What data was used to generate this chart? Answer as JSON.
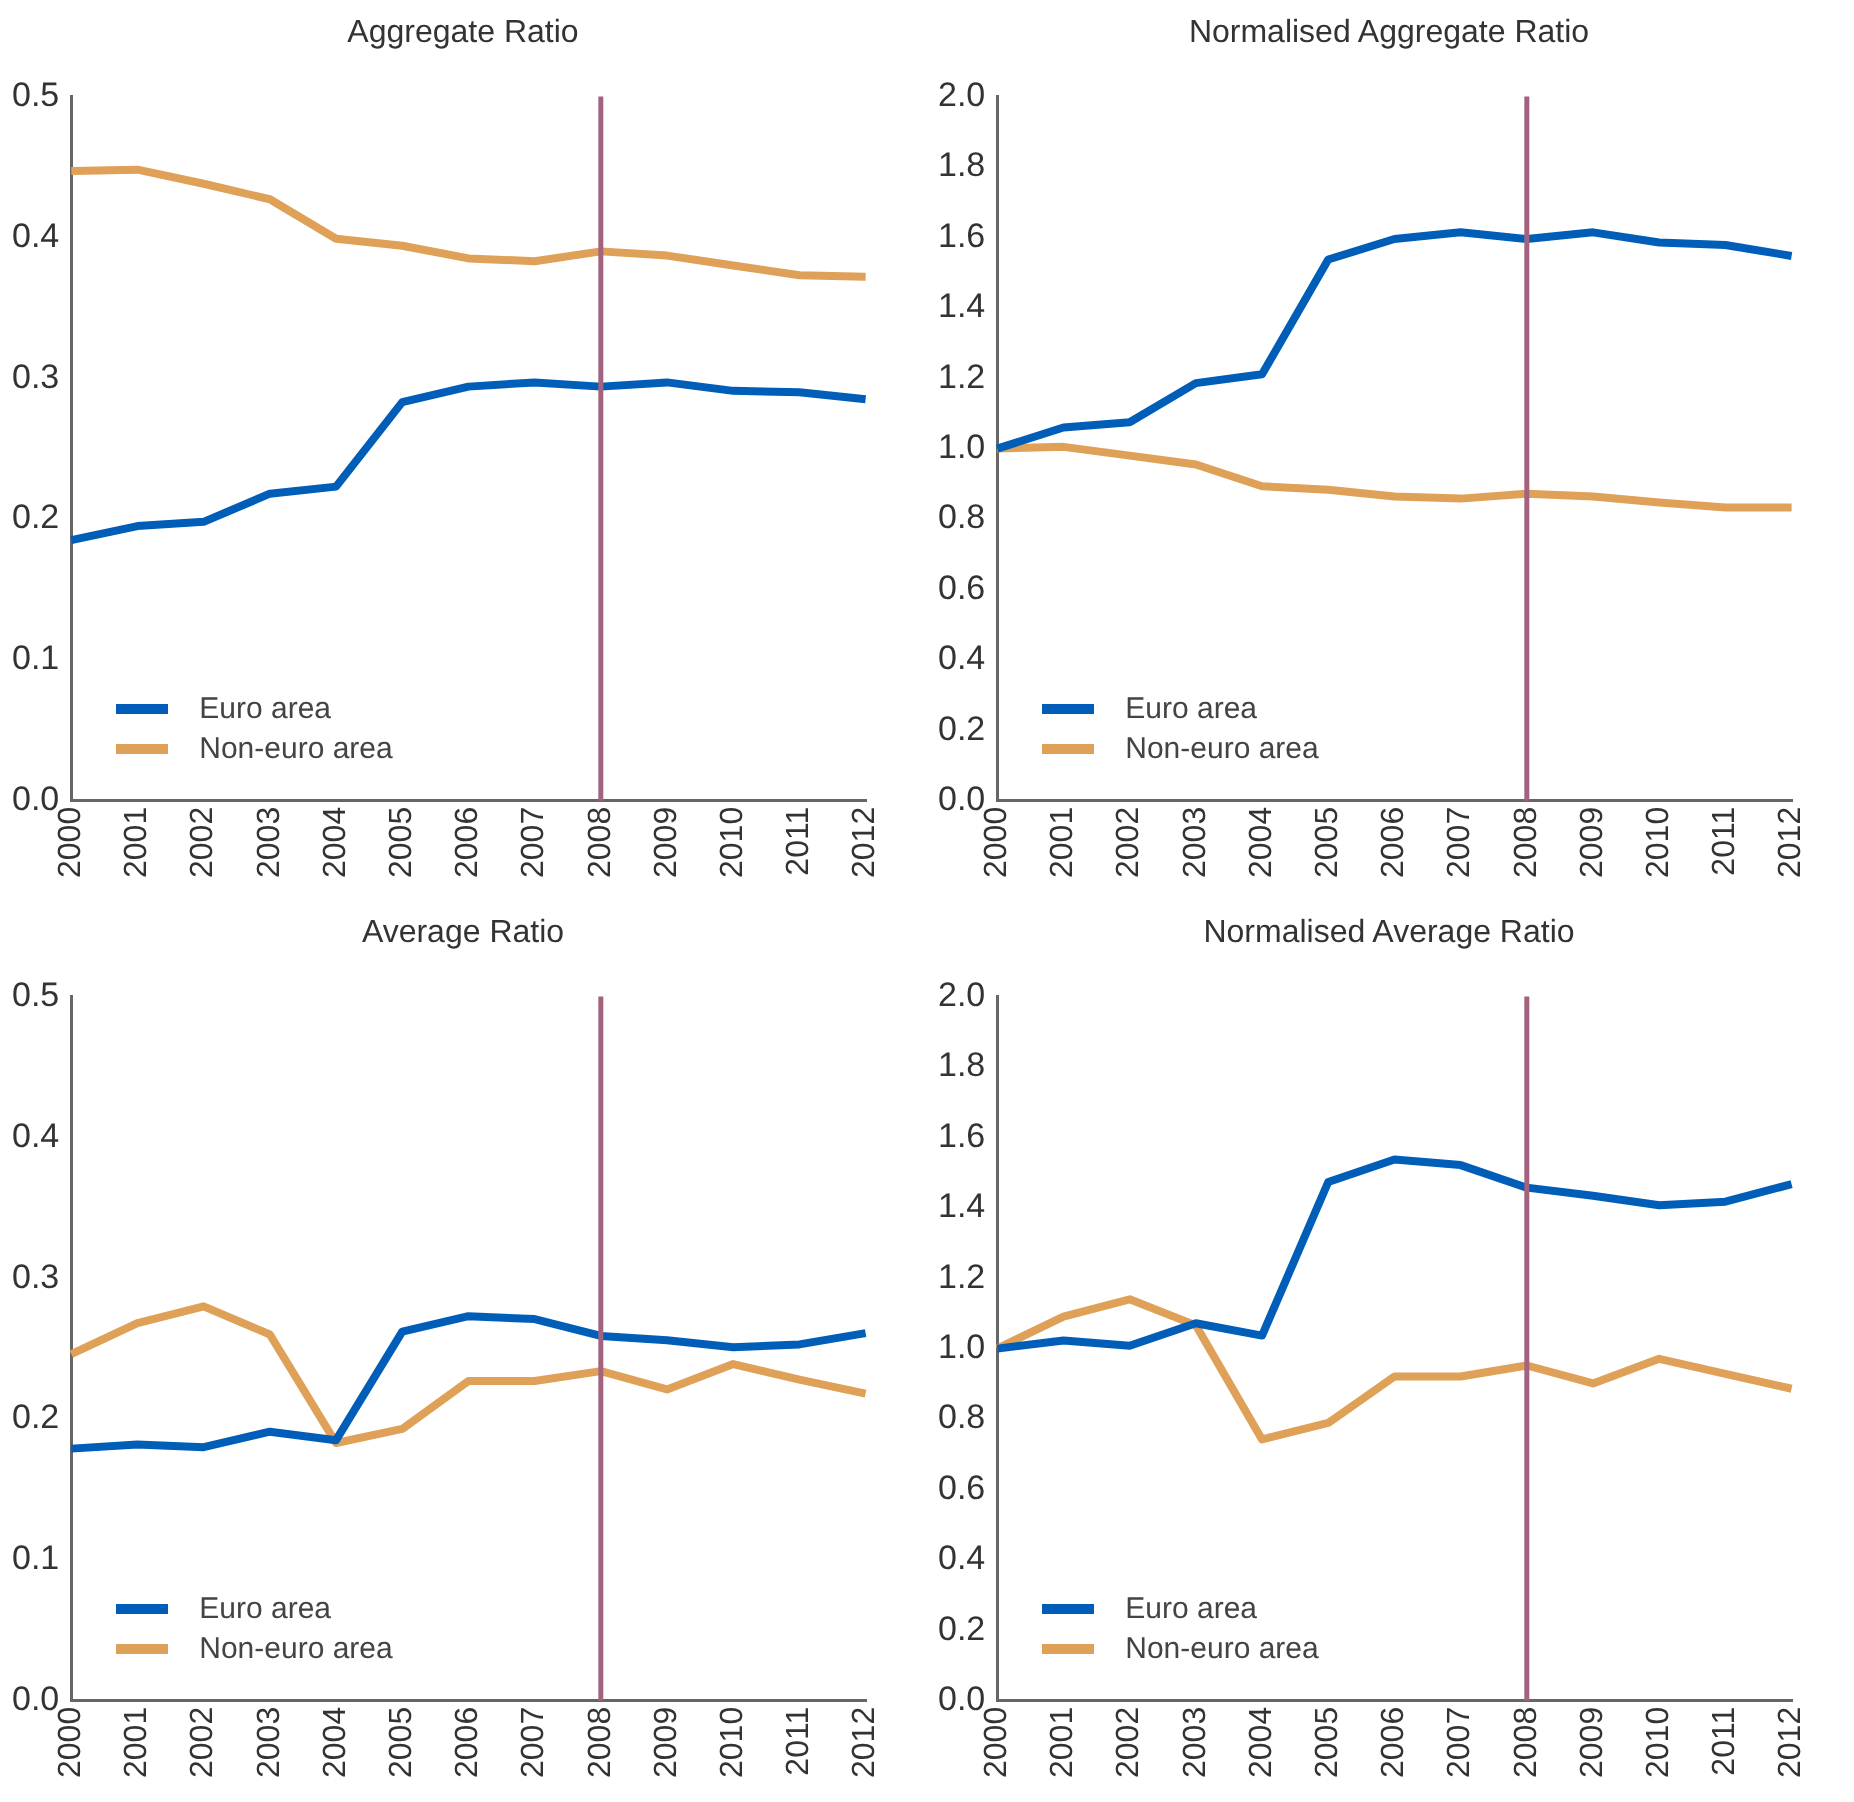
{
  "chart_data": [
    {
      "type": "line",
      "title": "Aggregate Ratio",
      "categories": [
        "2000",
        "2001",
        "2002",
        "2003",
        "2004",
        "2005",
        "2006",
        "2007",
        "2008",
        "2009",
        "2010",
        "2011",
        "2012"
      ],
      "ylim": [
        0,
        0.5
      ],
      "yticks": [
        {
          "value": 0,
          "label": "0.0"
        },
        0.1,
        0.2,
        0.3,
        0.4,
        0.5
      ],
      "grid": false,
      "legend": "bottom left",
      "marker": "none",
      "ref_lines": [
        {
          "axis": "x",
          "value": "2008",
          "color": "#a3637f"
        }
      ],
      "series": [
        {
          "name": "Euro area",
          "color": "#005eb8",
          "values": [
            0.185,
            0.195,
            0.198,
            0.218,
            0.223,
            0.283,
            0.294,
            0.297,
            0.294,
            0.297,
            0.291,
            0.29,
            0.285
          ]
        },
        {
          "name": "Non-euro area",
          "color": "#dfa057",
          "values": [
            0.447,
            0.448,
            0.438,
            0.427,
            0.399,
            0.394,
            0.385,
            0.383,
            0.39,
            0.387,
            0.38,
            0.373,
            0.372
          ]
        }
      ]
    },
    {
      "type": "line",
      "title": "Normalised Aggregate Ratio",
      "categories": [
        "2000",
        "2001",
        "2002",
        "2003",
        "2004",
        "2005",
        "2006",
        "2007",
        "2008",
        "2009",
        "2010",
        "2011",
        "2012"
      ],
      "ylim": [
        0,
        2
      ],
      "yticks": [
        {
          "value": 0,
          "label": "0.0"
        },
        0.2,
        0.4,
        0.6,
        0.8,
        {
          "value": 1,
          "label": "1.0"
        },
        1.2,
        1.4,
        1.6,
        1.8,
        {
          "value": 2,
          "label": "2.0"
        }
      ],
      "grid": false,
      "legend": "bottom left",
      "marker": "none",
      "ref_lines": [
        {
          "axis": "x",
          "value": "2008",
          "color": "#a3637f"
        }
      ],
      "series": [
        {
          "name": "Euro area",
          "color": "#005eb8",
          "values": [
            1.0,
            1.06,
            1.075,
            1.186,
            1.211,
            1.537,
            1.595,
            1.614,
            1.595,
            1.614,
            1.585,
            1.578,
            1.547
          ]
        },
        {
          "name": "Non-euro area",
          "color": "#dfa057",
          "values": [
            1.0,
            1.005,
            0.98,
            0.955,
            0.893,
            0.883,
            0.864,
            0.858,
            0.872,
            0.864,
            0.847,
            0.833,
            0.833
          ]
        }
      ]
    },
    {
      "type": "line",
      "title": "Average Ratio",
      "categories": [
        "2000",
        "2001",
        "2002",
        "2003",
        "2004",
        "2005",
        "2006",
        "2007",
        "2008",
        "2009",
        "2010",
        "2011",
        "2012"
      ],
      "ylim": [
        0,
        0.5
      ],
      "yticks": [
        {
          "value": 0,
          "label": "0.0"
        },
        0.1,
        0.2,
        0.3,
        0.4,
        0.5
      ],
      "grid": false,
      "legend": "bottom left",
      "marker": "none",
      "ref_lines": [
        {
          "axis": "x",
          "value": "2008",
          "color": "#a3637f"
        }
      ],
      "series": [
        {
          "name": "Euro area",
          "color": "#005eb8",
          "values": [
            0.179,
            0.182,
            0.18,
            0.191,
            0.185,
            0.262,
            0.273,
            0.271,
            0.259,
            0.256,
            0.251,
            0.253,
            0.261
          ]
        },
        {
          "name": "Non-euro area",
          "color": "#dfa057",
          "values": [
            0.246,
            0.268,
            0.28,
            0.26,
            0.183,
            0.193,
            0.227,
            0.227,
            0.234,
            0.221,
            0.239,
            0.228,
            0.218
          ]
        }
      ]
    },
    {
      "type": "line",
      "title": "Normalised Average Ratio",
      "categories": [
        "2000",
        "2001",
        "2002",
        "2003",
        "2004",
        "2005",
        "2006",
        "2007",
        "2008",
        "2009",
        "2010",
        "2011",
        "2012"
      ],
      "ylim": [
        0,
        2
      ],
      "yticks": [
        {
          "value": 0,
          "label": "0.0"
        },
        0.2,
        0.4,
        0.6,
        0.8,
        {
          "value": 1,
          "label": "1.0"
        },
        1.2,
        1.4,
        1.6,
        1.8,
        {
          "value": 2,
          "label": "2.0"
        }
      ],
      "grid": false,
      "legend": "bottom left",
      "marker": "none",
      "ref_lines": [
        {
          "axis": "x",
          "value": "2008",
          "color": "#a3637f"
        }
      ],
      "series": [
        {
          "name": "Euro area",
          "color": "#005eb8",
          "values": [
            1.0,
            1.023,
            1.008,
            1.072,
            1.037,
            1.473,
            1.537,
            1.521,
            1.457,
            1.434,
            1.407,
            1.417,
            1.467
          ]
        },
        {
          "name": "Non-euro area",
          "color": "#dfa057",
          "values": [
            1.0,
            1.091,
            1.14,
            1.066,
            0.742,
            0.789,
            0.921,
            0.921,
            0.952,
            0.901,
            0.971,
            0.928,
            0.886
          ]
        }
      ]
    }
  ]
}
